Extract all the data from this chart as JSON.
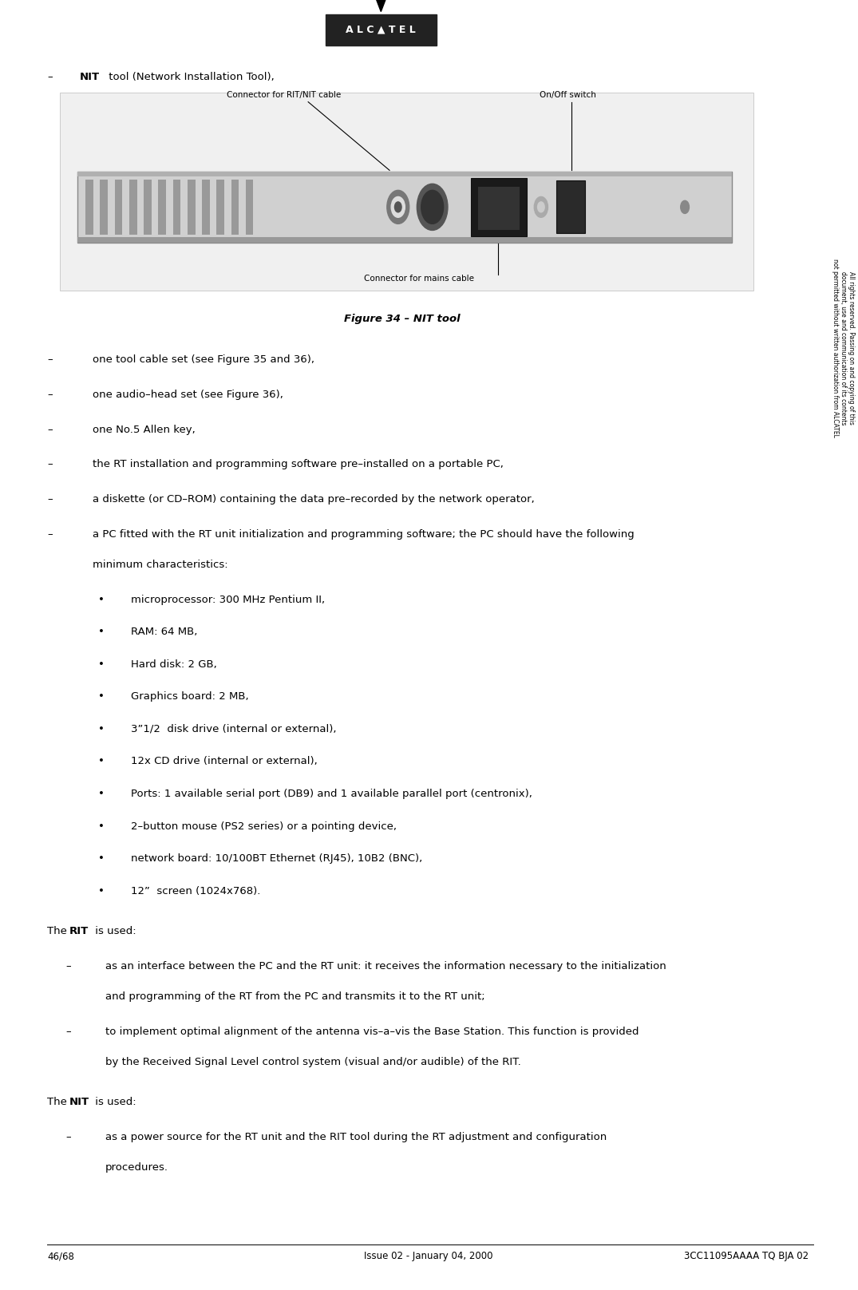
{
  "page_width": 10.75,
  "page_height": 16.16,
  "bg_color": "#ffffff",
  "logo_text": "ALCATEL",
  "footer_left": "46/68",
  "footer_center": "Issue 02 - January 04, 2000",
  "footer_right": "3CC11095AAAA TQ BJA 02",
  "sidebar_text": "All rights reserved. Passing on and copying of this\ndocument, use and communication of its contents\nnot permitted without written authorization from ALCATEL",
  "figure_caption": "Figure 34 – NIT tool",
  "nit_label": "NIT",
  "nit_intro": " tool (Network Installation Tool),",
  "connector_rit_label": "Connector for RIT/NIT cable",
  "on_off_label": "On/Off switch",
  "connector_mains_label": "Connector for mains cable",
  "bullet_items": [
    "one tool cable set (see Figure 35 and 36),",
    "one audio–head set (see Figure 36),",
    "one No.5 Allen key,",
    "the RT installation and programming software pre–installed on a portable PC,",
    "a diskette (or CD–ROM) containing the data pre–recorded by the network operator,",
    "a PC fitted with the RT unit initialization and programming software; the PC should have the following\nminimum characteristics:"
  ],
  "sub_bullets": [
    "microprocessor: 300 MHz Pentium II,",
    "RAM: 64 MB,",
    "Hard disk: 2 GB,",
    "Graphics board: 2 MB,",
    "3”1/2  disk drive (internal or external),",
    "12x CD drive (internal or external),",
    "Ports: 1 available serial port (DB9) and 1 available parallel port (centronix),",
    "2–button mouse (PS2 series) or a pointing device,",
    "network board: 10/100BT Ethernet (RJ45), 10B2 (BNC),",
    "12”  screen (1024x768)."
  ],
  "rit_items": [
    "as an interface between the PC and the RT unit: it receives the information necessary to the initialization\nand programming of the RT from the PC and transmits it to the RT unit;",
    "to implement optimal alignment of the antenna vis–a–vis the Base Station. This function is provided\nby the Received Signal Level control system (visual and/or audible) of the RIT."
  ],
  "nit_items": [
    "as a power source for the RT unit and the RIT tool during the RT adjustment and configuration\nprocedures."
  ],
  "font_size_body": 9.5,
  "font_size_small": 7.5,
  "font_size_caption": 9.5,
  "font_size_footer": 8.5,
  "font_size_logo": 9,
  "font_size_sidebar": 5.5
}
